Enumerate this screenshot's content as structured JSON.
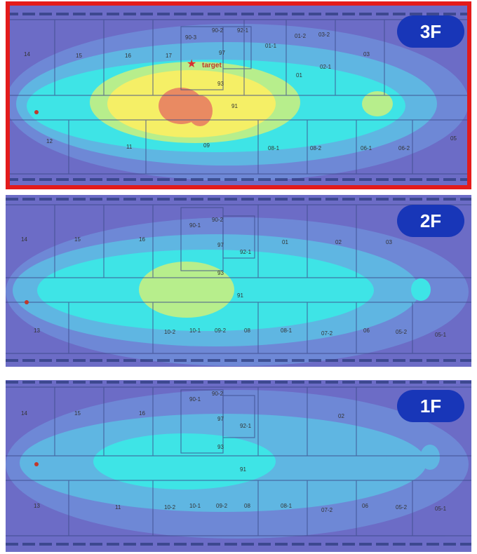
{
  "floors": [
    {
      "id": "3f",
      "label": "3F",
      "selected": true,
      "target_label": "target",
      "rooms": [
        "14",
        "15",
        "16",
        "17",
        "90-3",
        "90-2",
        "92-1",
        "97",
        "93",
        "91",
        "01-1",
        "01-2",
        "03-2",
        "02-1",
        "03",
        "01",
        "12",
        "11",
        "09",
        "08-1",
        "08-2",
        "06-1",
        "06-2",
        "05"
      ]
    },
    {
      "id": "2f",
      "label": "2F",
      "selected": false,
      "rooms": [
        "14",
        "15",
        "16",
        "90-1",
        "90-2",
        "97",
        "92-1",
        "93",
        "91",
        "01",
        "02",
        "03",
        "13",
        "10-2",
        "10-1",
        "09-2",
        "08",
        "08-1",
        "07-2",
        "06",
        "05-2",
        "05-1"
      ]
    },
    {
      "id": "1f",
      "label": "1F",
      "selected": false,
      "rooms": [
        "14",
        "15",
        "16",
        "90-1",
        "90-2",
        "97",
        "92-1",
        "93",
        "91",
        "02",
        "13",
        "11",
        "10-2",
        "10-1",
        "09-2",
        "08",
        "08-1",
        "07-2",
        "06",
        "05-2",
        "05-1"
      ]
    }
  ],
  "colors": {
    "selection_frame": "#e31b1b",
    "badge": "#1836b8",
    "heat_low": "#6b6fcf",
    "heat_mid_low": "#5fa9df",
    "heat_mid": "#38e6e6",
    "heat_mid_high": "#b9ef8a",
    "heat_high": "#f6ef64",
    "heat_peak": "#e98a62",
    "source_marker": "#c0392b",
    "target_marker": "#d63031"
  }
}
